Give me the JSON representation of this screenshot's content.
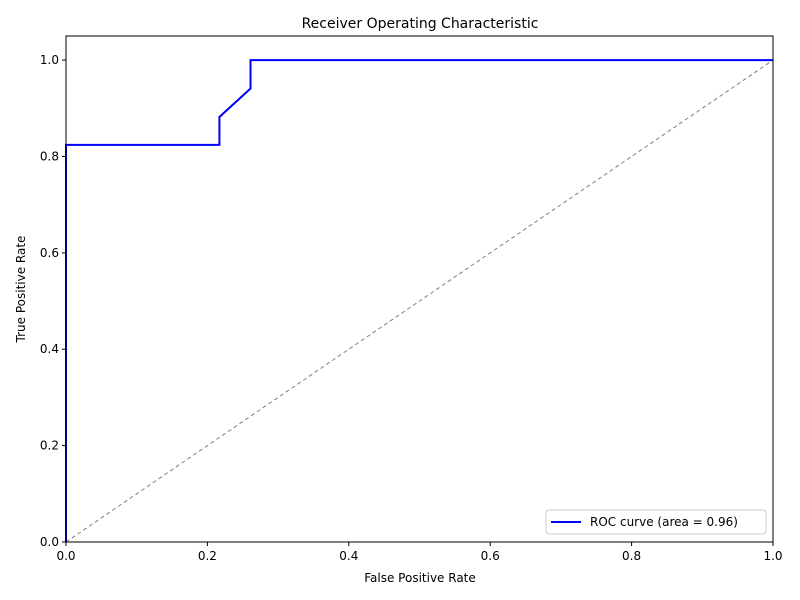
{
  "chart_data": {
    "type": "line",
    "title": "Receiver Operating Characteristic",
    "xlabel": "False Positive Rate",
    "ylabel": "True Positive Rate",
    "xlim": [
      0.0,
      1.0
    ],
    "ylim": [
      0.0,
      1.05
    ],
    "x_ticks": [
      "0.0",
      "0.2",
      "0.4",
      "0.6",
      "0.8",
      "1.0"
    ],
    "y_ticks": [
      "0.0",
      "0.2",
      "0.4",
      "0.6",
      "0.8",
      "1.0"
    ],
    "grid": false,
    "legend_position": "lower-right",
    "series": [
      {
        "name": "ROC curve (area = 0.96)",
        "color": "#0000ff",
        "style": "solid",
        "x": [
          0.0,
          0.0,
          0.217,
          0.217,
          0.261,
          0.261,
          1.0
        ],
        "y": [
          0.0,
          0.824,
          0.824,
          0.882,
          0.941,
          1.0,
          1.0
        ]
      },
      {
        "color": "#808080",
        "style": "dashed",
        "x": [
          0.0,
          1.0
        ],
        "y": [
          0.0,
          1.0
        ]
      }
    ]
  }
}
